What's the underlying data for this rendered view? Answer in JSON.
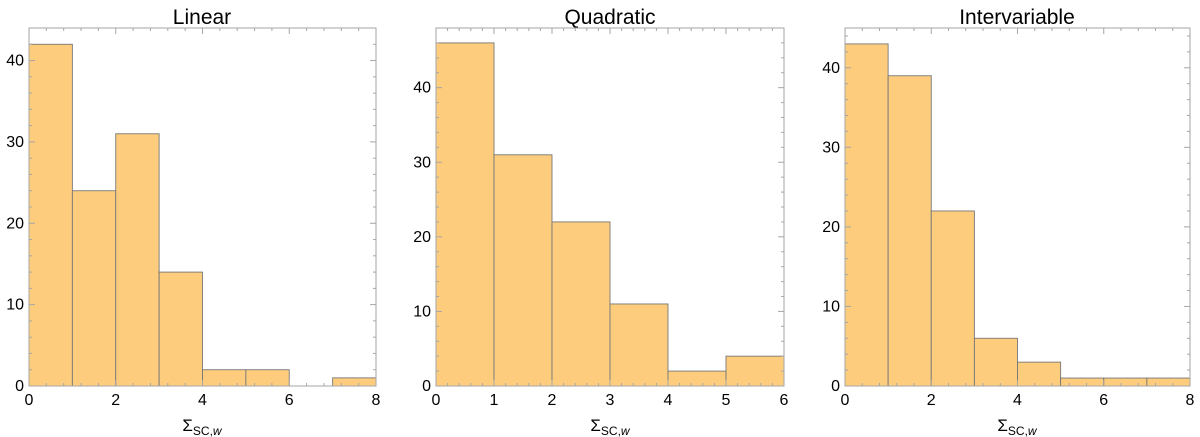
{
  "colors": {
    "bar_fill": "#fdcd7d",
    "bar_stroke": "#777777",
    "frame": "#a6a6a6"
  },
  "chart_data": [
    {
      "type": "bar",
      "title": "Linear",
      "xlabel": "ΣSC,w",
      "xlabel_parts": {
        "main": "Σ",
        "sub": "SC,",
        "sub_italic": "w"
      },
      "bin_edges": [
        0,
        1,
        2,
        3,
        4,
        5,
        6,
        7,
        8
      ],
      "values": [
        42,
        24,
        31,
        14,
        2,
        2,
        0,
        1
      ],
      "xlim": [
        0,
        8
      ],
      "ylim": [
        0,
        44
      ],
      "xticks": [
        0,
        2,
        4,
        6,
        8
      ],
      "yticks": [
        0,
        10,
        20,
        30,
        40
      ],
      "grid": false
    },
    {
      "type": "bar",
      "title": "Quadratic",
      "xlabel": "ΣSC,w",
      "xlabel_parts": {
        "main": "Σ",
        "sub": "SC,",
        "sub_italic": "w"
      },
      "bin_edges": [
        0,
        1,
        2,
        3,
        4,
        5,
        6
      ],
      "values": [
        46,
        31,
        22,
        11,
        2,
        4
      ],
      "xlim": [
        0,
        6
      ],
      "ylim": [
        0,
        48
      ],
      "xticks": [
        0,
        1,
        2,
        3,
        4,
        5,
        6
      ],
      "yticks": [
        0,
        10,
        20,
        30,
        40
      ],
      "grid": false
    },
    {
      "type": "bar",
      "title": "Intervariable",
      "xlabel": "ΣSC,w",
      "xlabel_parts": {
        "main": "Σ",
        "sub": "SC,",
        "sub_italic": "w"
      },
      "bin_edges": [
        0,
        1,
        2,
        3,
        4,
        5,
        6,
        7,
        8
      ],
      "values": [
        43,
        39,
        22,
        6,
        3,
        1,
        1,
        1
      ],
      "xlim": [
        0,
        8
      ],
      "ylim": [
        0,
        45
      ],
      "xticks": [
        0,
        2,
        4,
        6,
        8
      ],
      "yticks": [
        0,
        10,
        20,
        30,
        40
      ],
      "grid": false
    }
  ]
}
